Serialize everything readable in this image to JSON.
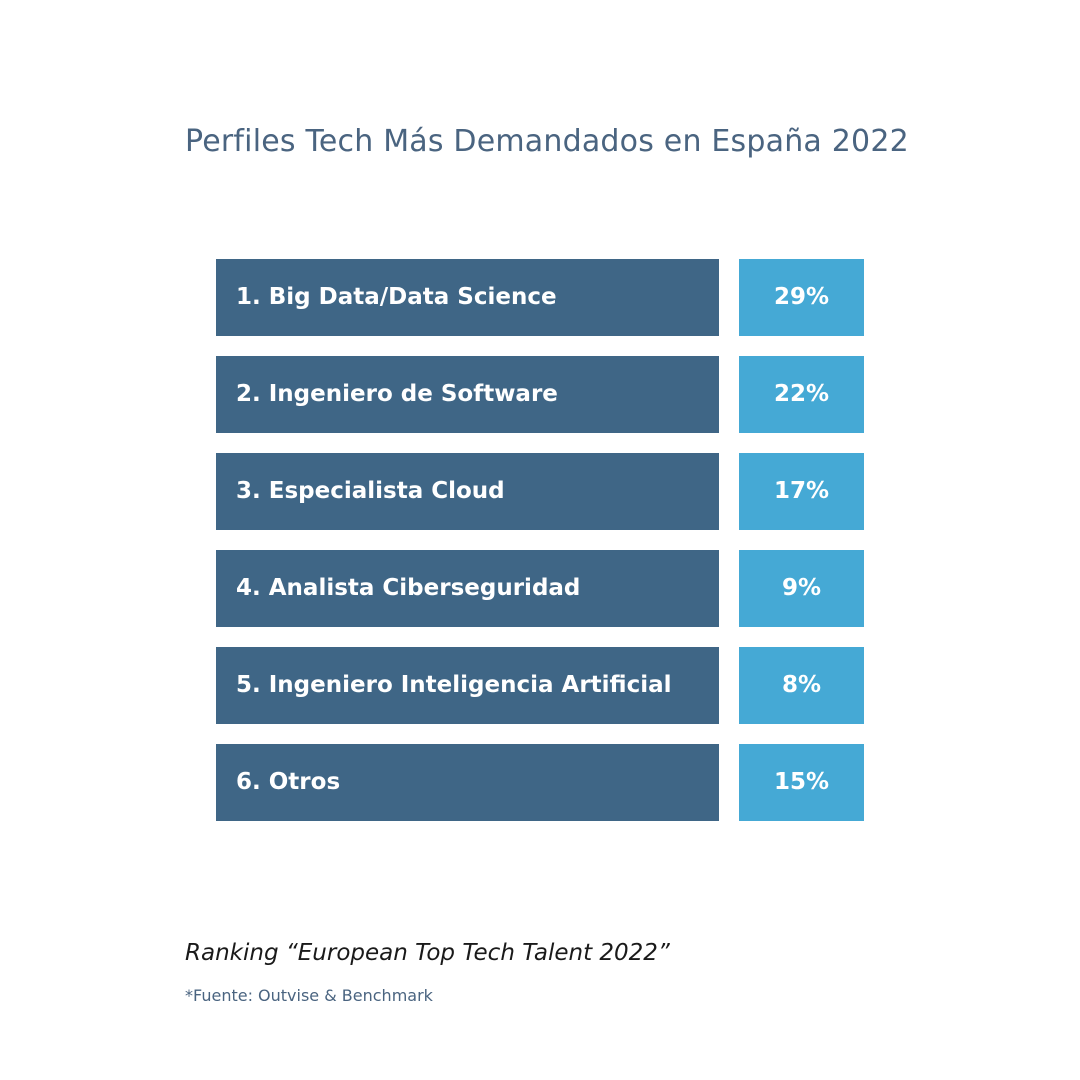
{
  "title": "Perfiles Tech Más Demandados en España 2022",
  "subtitle": "Ranking “European Top Tech Talent 2022”",
  "source": "*Fuente: Outvise & Benchmark",
  "colors": {
    "label_bg": "#3f6686",
    "value_bg": "#45a9d5",
    "title": "#4a6480"
  },
  "chart_data": {
    "type": "table",
    "categories": [
      "1. Big Data/Data Science",
      "2. Ingeniero de Software",
      "3. Especialista Cloud",
      "4. Analista Ciberseguridad",
      "5. Ingeniero Inteligencia Artificial",
      "6. Otros"
    ],
    "values": [
      29,
      22,
      17,
      9,
      8,
      15
    ],
    "value_labels": [
      "29%",
      "22%",
      "17%",
      "9%",
      "8%",
      "15%"
    ]
  }
}
